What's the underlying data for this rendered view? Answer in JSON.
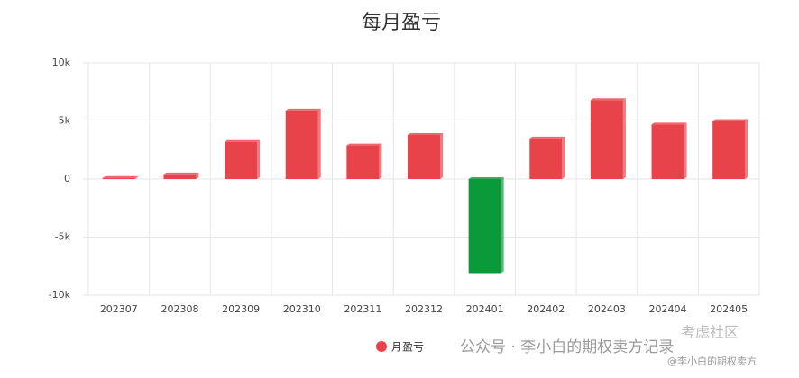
{
  "chart_data": {
    "type": "bar",
    "title": "每月盈亏",
    "categories": [
      "202307",
      "202308",
      "202309",
      "202310",
      "202311",
      "202312",
      "202401",
      "202402",
      "202403",
      "202404",
      "202405"
    ],
    "series": [
      {
        "name": "月盈亏",
        "color": "#e8424a",
        "negative_color": "#0a9a3a",
        "values": [
          100,
          400,
          3200,
          5900,
          2900,
          3800,
          -8100,
          3500,
          6800,
          4700,
          5000
        ]
      }
    ],
    "ylim": [
      -10000,
      10000
    ],
    "yticks": [
      {
        "value": -10000,
        "label": "-10k"
      },
      {
        "value": -5000,
        "label": "-5k"
      },
      0,
      {
        "value": 5000,
        "label": "5k"
      },
      {
        "value": 10000,
        "label": "10k"
      }
    ],
    "grid": true,
    "legend": "bottom",
    "watermark": [
      "公众号 · 李小白的期权卖方记录",
      "@李小白的期权卖方",
      "考虑社区"
    ]
  }
}
